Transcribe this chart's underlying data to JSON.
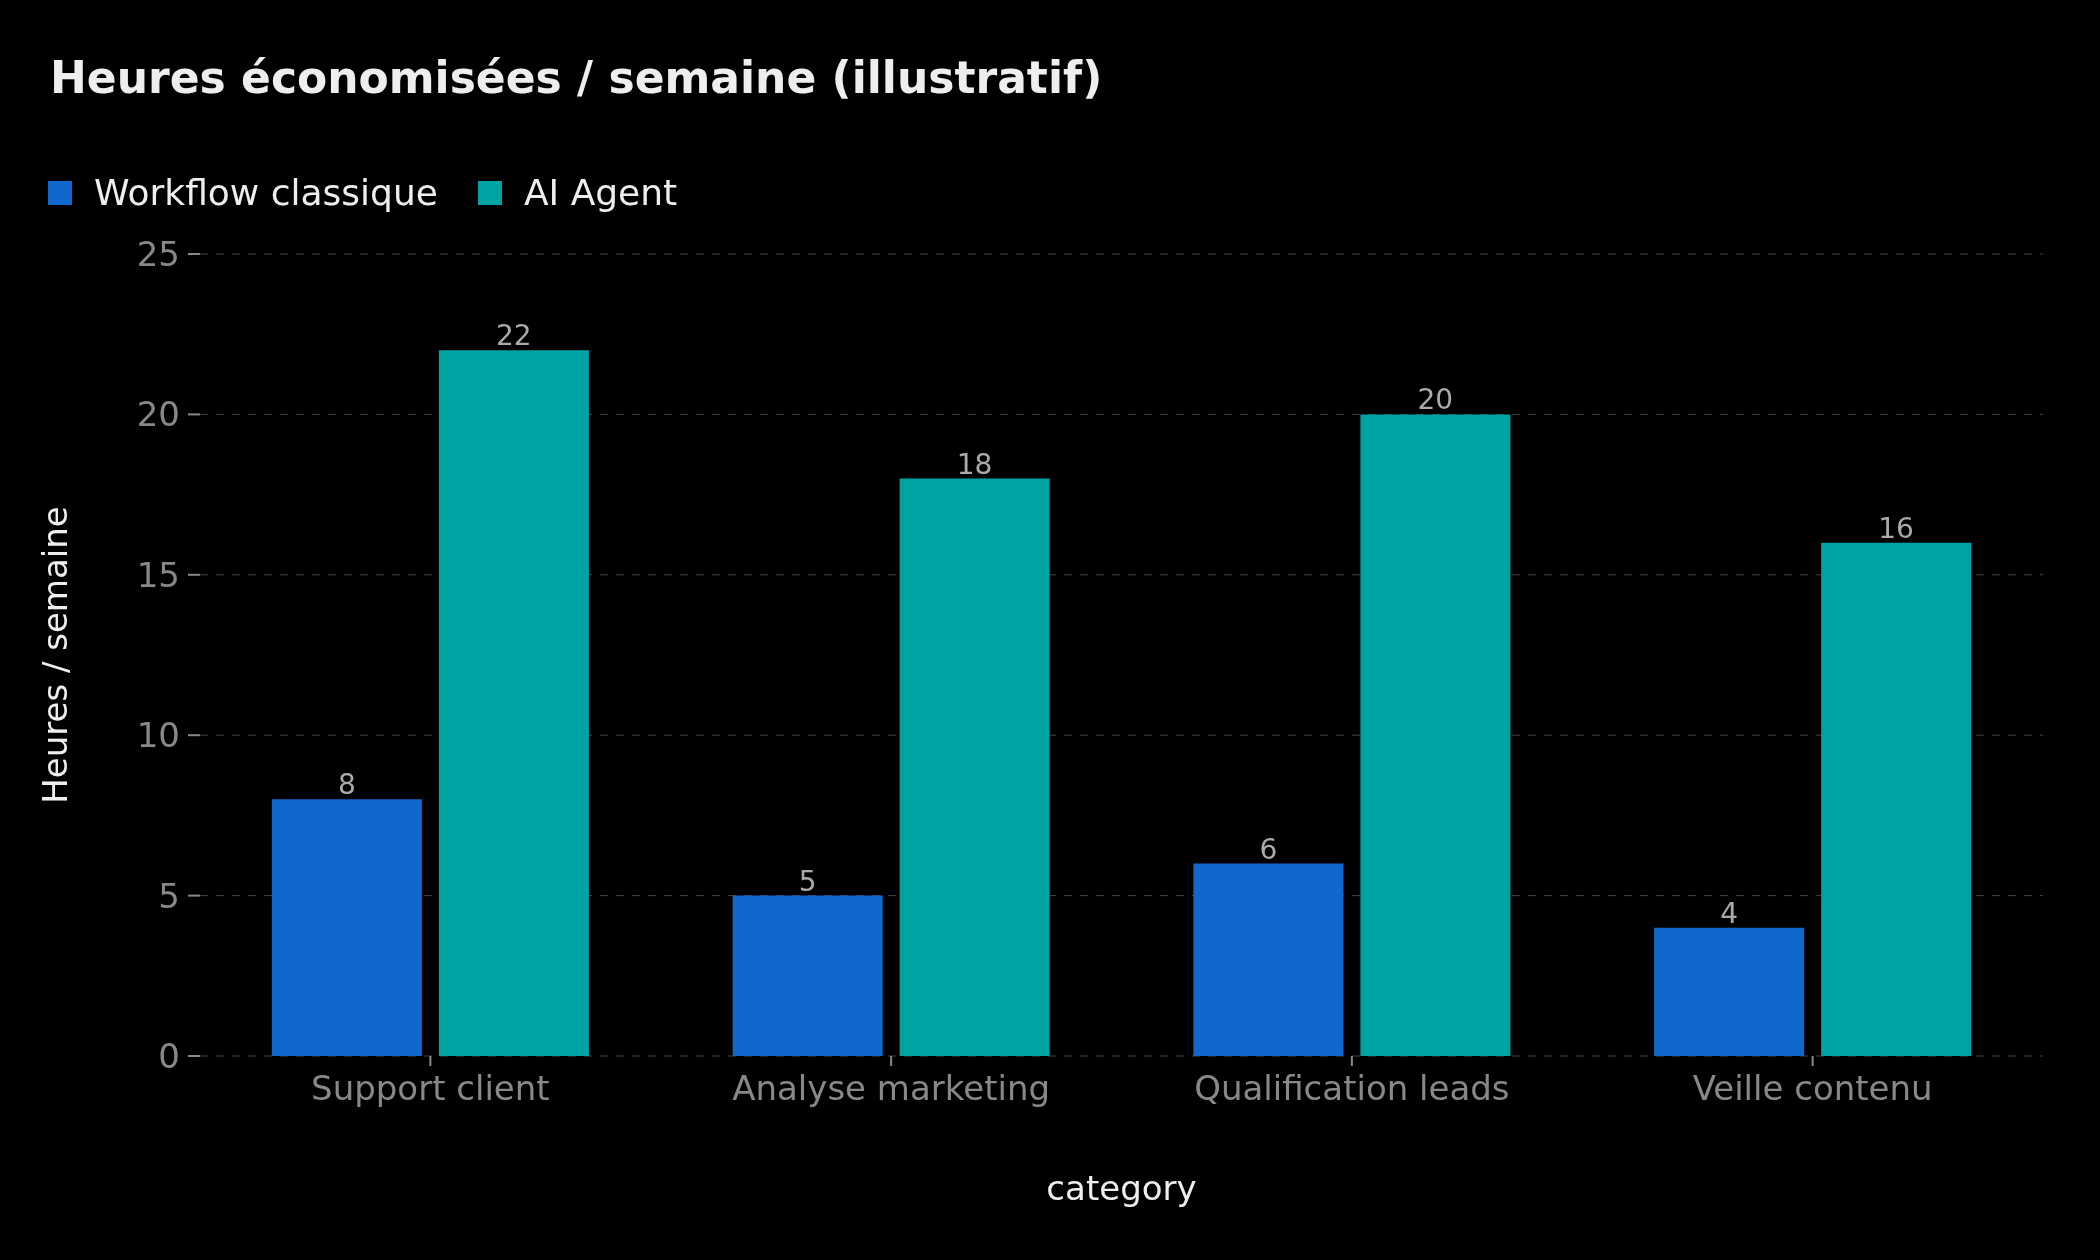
{
  "chart_data": {
    "type": "bar",
    "title": "Heures économisées / semaine (illustratif)",
    "xlabel": "category",
    "ylabel": "Heures / semaine",
    "categories": [
      "Support client",
      "Analyse marketing",
      "Qualification leads",
      "Veille contenu"
    ],
    "series": [
      {
        "name": "Workflow classique",
        "color": "#1168cc",
        "values": [
          8,
          5,
          6,
          4
        ]
      },
      {
        "name": "AI Agent",
        "color": "#00a3a3",
        "values": [
          22,
          18,
          20,
          16
        ]
      }
    ],
    "ylim": [
      0,
      25
    ],
    "yticks": [
      0,
      5,
      10,
      15,
      20,
      25
    ],
    "grid": "y",
    "legend": "top left",
    "data_labels": true
  }
}
